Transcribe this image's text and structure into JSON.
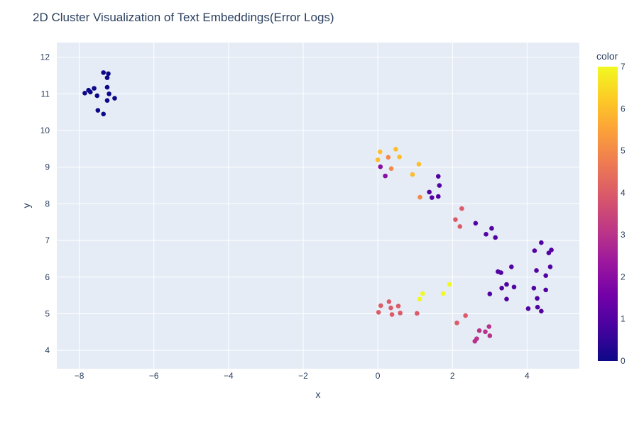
{
  "chart_data": {
    "type": "scatter",
    "title": "2D Cluster Visualization of Text Embeddings(Error Logs)",
    "xlabel": "x",
    "ylabel": "y",
    "xlim": [
      -8.6,
      5.4
    ],
    "ylim": [
      3.5,
      12.4
    ],
    "xticks": [
      -8,
      -6,
      -4,
      -2,
      0,
      2,
      4
    ],
    "xtick_labels": [
      "−8",
      "−6",
      "−4",
      "−2",
      "0",
      "2",
      "4"
    ],
    "yticks": [
      4,
      5,
      6,
      7,
      8,
      9,
      10,
      11,
      12
    ],
    "grid": true,
    "plot_background": "#e5ecf6",
    "colorbar": {
      "title": "color",
      "range": [
        0,
        7
      ],
      "ticks": [
        0,
        1,
        2,
        3,
        4,
        5,
        6,
        7
      ],
      "colorscale": [
        "#0d0887",
        "#46039f",
        "#7201a8",
        "#9c179e",
        "#bd3786",
        "#d8576b",
        "#ed7953",
        "#fb9f3a",
        "#fdca26",
        "#f0f921"
      ]
    },
    "points": [
      {
        "x": -7.85,
        "y": 11.02,
        "c": 0
      },
      {
        "x": -7.75,
        "y": 11.1,
        "c": 0
      },
      {
        "x": -7.7,
        "y": 11.05,
        "c": 0
      },
      {
        "x": -7.6,
        "y": 11.15,
        "c": 0
      },
      {
        "x": -7.52,
        "y": 10.95,
        "c": 0
      },
      {
        "x": -7.5,
        "y": 10.55,
        "c": 0
      },
      {
        "x": -7.35,
        "y": 11.58,
        "c": 0
      },
      {
        "x": -7.25,
        "y": 11.44,
        "c": 0
      },
      {
        "x": -7.22,
        "y": 11.55,
        "c": 0
      },
      {
        "x": -7.25,
        "y": 11.18,
        "c": 0
      },
      {
        "x": -7.2,
        "y": 11.0,
        "c": 0
      },
      {
        "x": -7.25,
        "y": 10.82,
        "c": 0
      },
      {
        "x": -7.05,
        "y": 10.88,
        "c": 0
      },
      {
        "x": -7.35,
        "y": 10.45,
        "c": 0
      },
      {
        "x": 1.62,
        "y": 8.75,
        "c": 1
      },
      {
        "x": 1.65,
        "y": 8.5,
        "c": 1
      },
      {
        "x": 1.38,
        "y": 8.32,
        "c": 1
      },
      {
        "x": 1.45,
        "y": 8.17,
        "c": 1
      },
      {
        "x": 1.62,
        "y": 8.2,
        "c": 1
      },
      {
        "x": 2.62,
        "y": 7.47,
        "c": 1
      },
      {
        "x": 3.05,
        "y": 7.33,
        "c": 1
      },
      {
        "x": 2.9,
        "y": 7.17,
        "c": 1
      },
      {
        "x": 3.15,
        "y": 7.08,
        "c": 1
      },
      {
        "x": 3.22,
        "y": 6.15,
        "c": 1
      },
      {
        "x": 3.3,
        "y": 6.12,
        "c": 1
      },
      {
        "x": 3.58,
        "y": 6.28,
        "c": 1
      },
      {
        "x": 3.32,
        "y": 5.7,
        "c": 1
      },
      {
        "x": 3.45,
        "y": 5.8,
        "c": 1
      },
      {
        "x": 3.65,
        "y": 5.73,
        "c": 1
      },
      {
        "x": 3.0,
        "y": 5.54,
        "c": 1
      },
      {
        "x": 3.45,
        "y": 5.4,
        "c": 1
      },
      {
        "x": 4.38,
        "y": 6.94,
        "c": 1
      },
      {
        "x": 4.2,
        "y": 6.72,
        "c": 1
      },
      {
        "x": 4.58,
        "y": 6.66,
        "c": 1
      },
      {
        "x": 4.65,
        "y": 6.74,
        "c": 1
      },
      {
        "x": 4.25,
        "y": 6.18,
        "c": 1
      },
      {
        "x": 4.62,
        "y": 6.28,
        "c": 1
      },
      {
        "x": 4.5,
        "y": 6.04,
        "c": 1
      },
      {
        "x": 4.18,
        "y": 5.7,
        "c": 1
      },
      {
        "x": 4.5,
        "y": 5.65,
        "c": 1
      },
      {
        "x": 4.27,
        "y": 5.42,
        "c": 1
      },
      {
        "x": 4.03,
        "y": 5.14,
        "c": 1
      },
      {
        "x": 4.28,
        "y": 5.18,
        "c": 1
      },
      {
        "x": 4.38,
        "y": 5.07,
        "c": 1
      },
      {
        "x": 0.07,
        "y": 9.01,
        "c": 2
      },
      {
        "x": 0.2,
        "y": 8.76,
        "c": 2
      },
      {
        "x": 2.6,
        "y": 4.25,
        "c": 3
      },
      {
        "x": 2.65,
        "y": 4.32,
        "c": 3
      },
      {
        "x": 2.72,
        "y": 4.54,
        "c": 3
      },
      {
        "x": 2.88,
        "y": 4.51,
        "c": 3
      },
      {
        "x": 3.0,
        "y": 4.4,
        "c": 3
      },
      {
        "x": 2.98,
        "y": 4.65,
        "c": 3
      },
      {
        "x": 2.35,
        "y": 4.95,
        "c": 4
      },
      {
        "x": 2.12,
        "y": 4.75,
        "c": 4
      },
      {
        "x": 2.08,
        "y": 7.57,
        "c": 4
      },
      {
        "x": 2.2,
        "y": 7.38,
        "c": 4
      },
      {
        "x": 2.25,
        "y": 7.87,
        "c": 4
      },
      {
        "x": 0.02,
        "y": 5.04,
        "c": 4
      },
      {
        "x": 0.08,
        "y": 5.22,
        "c": 4
      },
      {
        "x": 0.3,
        "y": 5.33,
        "c": 4
      },
      {
        "x": 0.35,
        "y": 5.16,
        "c": 4
      },
      {
        "x": 0.55,
        "y": 5.21,
        "c": 4
      },
      {
        "x": 0.38,
        "y": 4.98,
        "c": 4
      },
      {
        "x": 0.6,
        "y": 5.02,
        "c": 4
      },
      {
        "x": 1.05,
        "y": 5.01,
        "c": 4
      },
      {
        "x": 0.28,
        "y": 9.27,
        "c": 5
      },
      {
        "x": 0.36,
        "y": 8.96,
        "c": 5
      },
      {
        "x": 1.13,
        "y": 8.18,
        "c": 5
      },
      {
        "x": 0.0,
        "y": 9.2,
        "c": 6
      },
      {
        "x": 0.06,
        "y": 9.42,
        "c": 6
      },
      {
        "x": 0.48,
        "y": 9.49,
        "c": 6
      },
      {
        "x": 0.58,
        "y": 9.28,
        "c": 6
      },
      {
        "x": 1.1,
        "y": 9.08,
        "c": 6
      },
      {
        "x": 0.93,
        "y": 8.8,
        "c": 6
      },
      {
        "x": 1.12,
        "y": 5.4,
        "c": 7
      },
      {
        "x": 1.2,
        "y": 5.55,
        "c": 7
      },
      {
        "x": 1.75,
        "y": 5.55,
        "c": 7
      },
      {
        "x": 1.92,
        "y": 5.8,
        "c": 7
      }
    ]
  }
}
